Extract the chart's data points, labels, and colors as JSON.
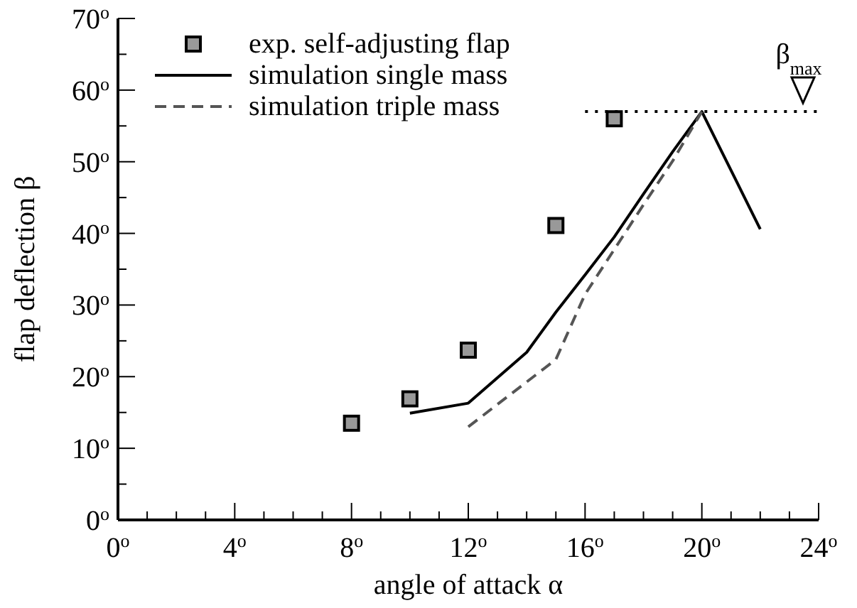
{
  "chart_data": {
    "type": "line",
    "xlabel": "angle of attack α",
    "ylabel": "flap deflection β",
    "xlim": [
      0,
      24
    ],
    "ylim": [
      0,
      70
    ],
    "xticks": [
      {
        "value": 0,
        "label": "0$^{o}$"
      },
      {
        "value": 1,
        "label": null
      },
      {
        "value": 2,
        "label": null
      },
      {
        "value": 3,
        "label": null
      },
      {
        "value": 4,
        "label": "4$^{o}$"
      },
      {
        "value": 5,
        "label": null
      },
      {
        "value": 6,
        "label": null
      },
      {
        "value": 7,
        "label": null
      },
      {
        "value": 8,
        "label": "8$^{o}$"
      },
      {
        "value": 9,
        "label": null
      },
      {
        "value": 10,
        "label": null
      },
      {
        "value": 11,
        "label": null
      },
      {
        "value": 12,
        "label": "12$^{o}$"
      },
      {
        "value": 13,
        "label": null
      },
      {
        "value": 14,
        "label": null
      },
      {
        "value": 15,
        "label": null
      },
      {
        "value": 16,
        "label": "16$^{o}$"
      },
      {
        "value": 17,
        "label": null
      },
      {
        "value": 18,
        "label": null
      },
      {
        "value": 19,
        "label": null
      },
      {
        "value": 20,
        "label": "20$^{o}$"
      },
      {
        "value": 21,
        "label": null
      },
      {
        "value": 22,
        "label": null
      },
      {
        "value": 23,
        "label": null
      },
      {
        "value": 24,
        "label": "24$^{o}$"
      }
    ],
    "yticks": [
      {
        "value": 0,
        "label": "0$^{o}$"
      },
      {
        "value": 5,
        "label": null
      },
      {
        "value": 10,
        "label": "10$^{o}$"
      },
      {
        "value": 15,
        "label": null
      },
      {
        "value": 20,
        "label": "20$^{o}$"
      },
      {
        "value": 25,
        "label": null
      },
      {
        "value": 30,
        "label": "30$^{o}$"
      },
      {
        "value": 35,
        "label": null
      },
      {
        "value": 40,
        "label": "40$^{o}$"
      },
      {
        "value": 45,
        "label": null
      },
      {
        "value": 50,
        "label": "50$^{o}$"
      },
      {
        "value": 55,
        "label": null
      },
      {
        "value": 60,
        "label": "60$^{o}$"
      },
      {
        "value": 65,
        "label": null
      },
      {
        "value": 70,
        "label": "70$^{o}$"
      }
    ],
    "legend": "top left",
    "series": [
      {
        "name": "exp. self-adjusting flap",
        "type": "scatter",
        "marker": "square",
        "color": "#999999",
        "x": [
          8,
          10,
          12,
          15,
          17
        ],
        "values": [
          13.5,
          16.9,
          23.7,
          41.1,
          56.0
        ]
      },
      {
        "name": "simulation single mass",
        "type": "line",
        "line_style": "solid",
        "color": "#000000",
        "x": [
          10,
          12,
          14,
          15,
          16,
          17,
          18,
          19,
          20,
          22
        ],
        "values": [
          14.9,
          16.3,
          23.4,
          29.0,
          34.2,
          39.5,
          45.5,
          51.4,
          57.0,
          40.6
        ]
      },
      {
        "name": "simulation triple mass",
        "type": "line",
        "line_style": "dashed",
        "color": "#555555",
        "x": [
          12,
          15,
          16,
          18,
          19,
          20
        ],
        "values": [
          13.0,
          22.4,
          31.5,
          44.0,
          50.1,
          57.0
        ]
      }
    ],
    "ref_lines": [
      {
        "axis": "y",
        "value": 57,
        "label": "β$_{max}$",
        "line_style": "dotted",
        "color": "#000000"
      }
    ]
  }
}
